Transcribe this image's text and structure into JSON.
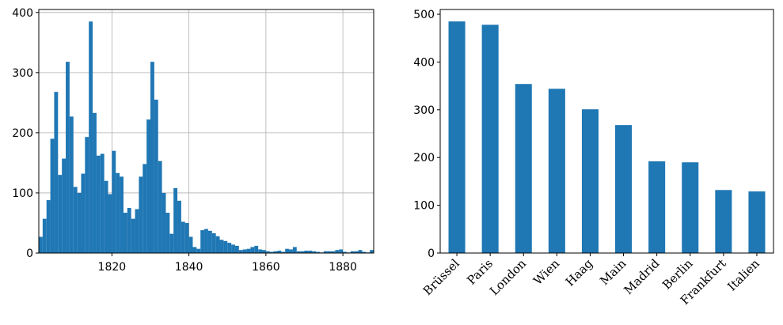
{
  "colors": {
    "bar": "#1f77b4",
    "grid": "#b0b0b0",
    "axis": "#000000"
  },
  "chart_data": [
    {
      "type": "bar",
      "subtype": "histogram",
      "title": "",
      "xlabel": "",
      "ylabel": "",
      "grid": true,
      "xlim": [
        1801,
        1888
      ],
      "ylim": [
        0,
        405
      ],
      "xticks": [
        1820,
        1840,
        1860,
        1880
      ],
      "yticks": [
        0,
        100,
        200,
        300,
        400
      ],
      "bin_start": 1801,
      "bin_width": 1,
      "values": [
        27,
        57,
        88,
        190,
        268,
        130,
        157,
        318,
        227,
        110,
        100,
        132,
        193,
        385,
        233,
        162,
        165,
        120,
        98,
        170,
        133,
        127,
        67,
        75,
        57,
        73,
        127,
        148,
        222,
        318,
        255,
        153,
        100,
        67,
        32,
        108,
        87,
        52,
        50,
        27,
        10,
        7,
        38,
        40,
        37,
        33,
        28,
        22,
        20,
        17,
        14,
        12,
        5,
        6,
        7,
        10,
        12,
        6,
        5,
        3,
        2,
        3,
        4,
        2,
        7,
        6,
        10,
        3,
        3,
        4,
        4,
        3,
        2,
        1,
        3,
        3,
        3,
        5,
        6,
        2,
        1,
        3,
        3,
        5,
        2,
        1,
        5
      ]
    },
    {
      "type": "bar",
      "title": "",
      "xlabel": "",
      "ylabel": "",
      "grid": false,
      "ylim": [
        0,
        510
      ],
      "yticks": [
        0,
        100,
        200,
        300,
        400,
        500
      ],
      "categories": [
        "Brüssel",
        "Paris",
        "London",
        "Wien",
        "Haag",
        "Main",
        "Madrid",
        "Berlin",
        "Frankfurt",
        "Italien"
      ],
      "values": [
        485,
        478,
        354,
        344,
        301,
        268,
        192,
        190,
        132,
        129
      ]
    }
  ]
}
